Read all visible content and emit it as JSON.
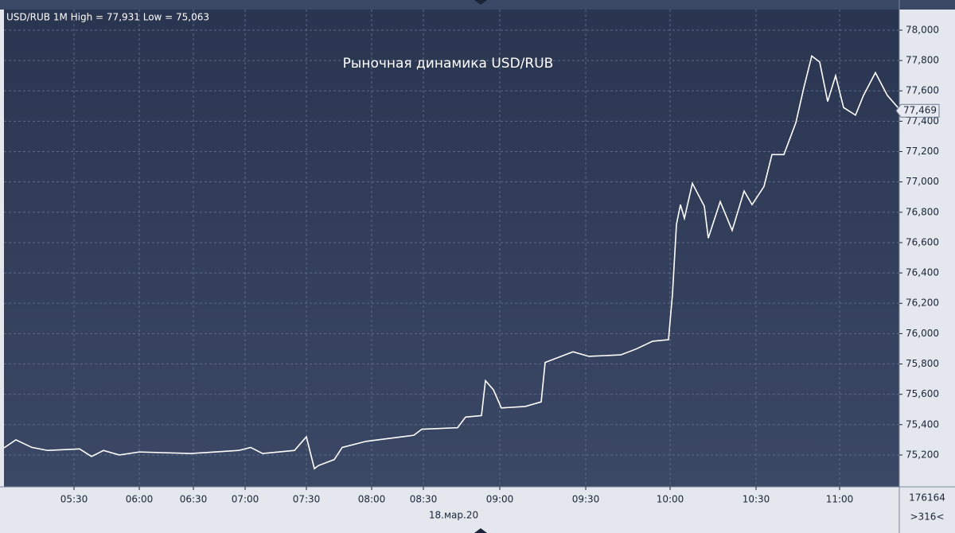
{
  "chart_data": {
    "type": "line",
    "header": "USD/RUB 1M High = 77,931 Low = 75,063",
    "title": "Рыночная динамика USD/RUB",
    "date_label": "18.мар.20",
    "volume_label": "176164",
    "bars_label": ">316<",
    "last_price": {
      "value": 77.469,
      "label": "77,469"
    },
    "grid": true,
    "x": [
      0,
      3,
      7,
      11,
      19,
      22,
      25,
      29,
      34,
      47,
      59,
      62,
      65,
      73,
      76,
      78,
      79,
      83,
      85,
      91,
      103,
      105,
      114,
      116,
      120,
      121,
      123,
      125,
      131,
      135,
      136,
      139,
      143,
      147,
      155,
      159,
      163,
      167,
      168,
      169,
      170,
      171,
      173,
      176,
      177,
      180,
      183,
      186,
      188,
      191,
      193,
      196,
      199,
      201,
      203,
      205,
      207,
      209,
      211,
      214,
      216,
      219,
      222,
      225
    ],
    "series": [
      {
        "color": "#ffffff",
        "values": [
          75.247,
          75.3,
          75.25,
          75.23,
          75.24,
          75.19,
          75.23,
          75.2,
          75.22,
          75.21,
          75.23,
          75.25,
          75.21,
          75.23,
          75.32,
          75.11,
          75.13,
          75.17,
          75.25,
          75.29,
          75.33,
          75.37,
          75.38,
          75.45,
          75.46,
          75.69,
          75.63,
          75.51,
          75.52,
          75.55,
          75.81,
          75.84,
          75.88,
          75.85,
          75.86,
          75.9,
          75.95,
          75.96,
          76.26,
          76.72,
          76.85,
          76.76,
          76.99,
          76.84,
          76.63,
          76.87,
          76.68,
          76.94,
          76.85,
          76.97,
          77.18,
          77.18,
          77.39,
          77.62,
          77.83,
          77.79,
          77.53,
          77.7,
          77.49,
          77.44,
          77.57,
          77.72,
          77.57,
          77.48
        ]
      }
    ],
    "xlim": [
      0,
      225
    ],
    "ylim": [
      74.99,
      78.136
    ],
    "yticks": [
      {
        "value": 75.2,
        "label": "75,200"
      },
      {
        "value": 75.4,
        "label": "75,400"
      },
      {
        "value": 75.6,
        "label": "75,600"
      },
      {
        "value": 75.8,
        "label": "75,800"
      },
      {
        "value": 76.0,
        "label": "76,000"
      },
      {
        "value": 76.2,
        "label": "76,200"
      },
      {
        "value": 76.4,
        "label": "76,400"
      },
      {
        "value": 76.6,
        "label": "76,600"
      },
      {
        "value": 76.8,
        "label": "76,800"
      },
      {
        "value": 77.0,
        "label": "77,000"
      },
      {
        "value": 77.2,
        "label": "77,200"
      },
      {
        "value": 77.4,
        "label": "77,400"
      },
      {
        "value": 77.6,
        "label": "77,600"
      },
      {
        "value": 77.8,
        "label": "77,800"
      },
      {
        "value": 78.0,
        "label": "78,000"
      }
    ],
    "xticks": [
      {
        "value": 17.6,
        "label": "05:30"
      },
      {
        "value": 34,
        "label": "06:00"
      },
      {
        "value": 47.6,
        "label": "06:30"
      },
      {
        "value": 60.6,
        "label": "07:00"
      },
      {
        "value": 76,
        "label": "07:30"
      },
      {
        "value": 92.4,
        "label": "08:00"
      },
      {
        "value": 105.4,
        "label": "08:30"
      },
      {
        "value": 124.6,
        "label": "09:00"
      },
      {
        "value": 146.2,
        "label": "09:30"
      },
      {
        "value": 167.4,
        "label": "10:00"
      },
      {
        "value": 189,
        "label": "10:30"
      },
      {
        "value": 210,
        "label": "11:00"
      }
    ]
  }
}
